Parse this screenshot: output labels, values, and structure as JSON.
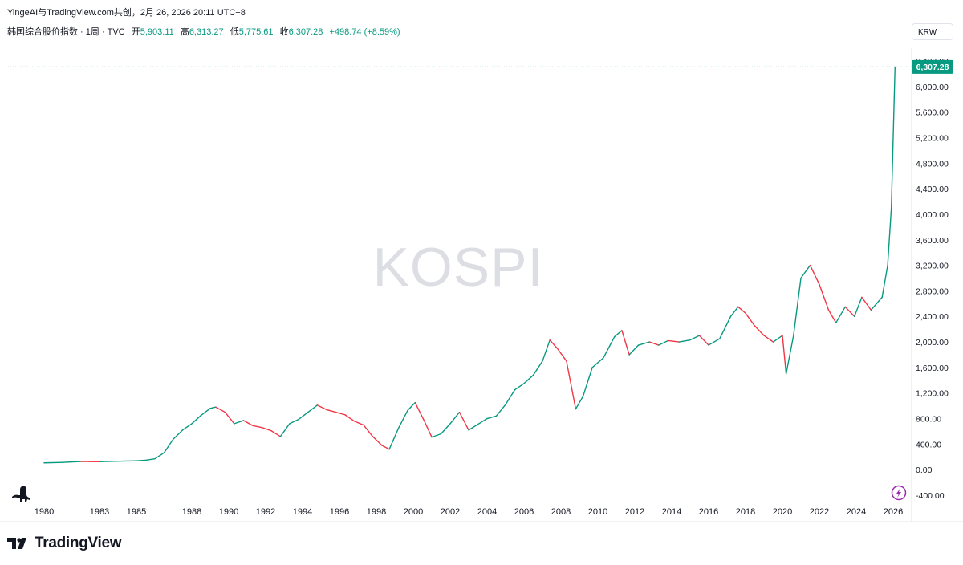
{
  "header": {
    "attribution": "YingeAI与TradingView.com共创，2月 26, 2026 20:11 UTC+8",
    "symbol": "韩国综合股价指数 · 1周 · TVC",
    "open_label": "开",
    "open": "5,903.11",
    "high_label": "高",
    "high": "6,313.27",
    "low_label": "低",
    "low": "5,775.61",
    "close_label": "收",
    "close": "6,307.28",
    "change": "+498.74 (+8.59%)"
  },
  "currency": "KRW",
  "watermark": "KOSPI",
  "brand": "TradingView",
  "price_tag": "6,307.28",
  "colors": {
    "up": "#089981",
    "down": "#f23645",
    "text": "#131722",
    "watermark": "#dcdee3"
  },
  "icons": {
    "logo": "dinosaur-logo-icon",
    "bolt": "lightning-icon",
    "brand_mark": "tradingview-logo-icon"
  },
  "chart_data": {
    "type": "line",
    "title": "KOSPI",
    "xlabel": "",
    "ylabel": "",
    "series": [
      {
        "x": [
          1980,
          1981,
          1982,
          1983,
          1984,
          1985,
          1985.5,
          1986,
          1986.5,
          1987,
          1987.5,
          1988,
          1988.5,
          1989,
          1989.3,
          1989.8,
          1990.3,
          1990.8,
          1991.3,
          1991.8,
          1992.3,
          1992.8,
          1993.3,
          1993.8,
          1994.3,
          1994.8,
          1995.3,
          1995.8,
          1996.3,
          1996.8,
          1997.3,
          1997.8,
          1998.3,
          1998.7,
          1999.2,
          1999.7,
          2000.1,
          2000.6,
          2001,
          2001.5,
          2002,
          2002.5,
          2003,
          2003.5,
          2004,
          2004.5,
          2005,
          2005.5,
          2006,
          2006.5,
          2007,
          2007.4,
          2007.8,
          2008.3,
          2008.8,
          2009.2,
          2009.7,
          2010.3,
          2010.9,
          2011.3,
          2011.7,
          2012.2,
          2012.8,
          2013.3,
          2013.8,
          2014.4,
          2015,
          2015.5,
          2016,
          2016.6,
          2017.2,
          2017.6,
          2018,
          2018.5,
          2019,
          2019.5,
          2020,
          2020.2,
          2020.6,
          2021,
          2021.5,
          2022,
          2022.5,
          2022.9,
          2023.4,
          2023.9,
          2024.3,
          2024.8,
          2025.1,
          2025.4,
          2025.7,
          2025.9,
          2026.1
        ],
        "y": [
          106,
          113,
          128,
          124,
          132,
          138,
          148,
          170,
          265,
          480,
          620,
          720,
          850,
          960,
          980,
          900,
          720,
          770,
          690,
          660,
          610,
          520,
          720,
          790,
          900,
          1010,
          940,
          900,
          860,
          760,
          700,
          520,
          380,
          320,
          650,
          930,
          1050,
          760,
          510,
          560,
          720,
          900,
          620,
          710,
          800,
          840,
          1020,
          1250,
          1350,
          1480,
          1700,
          2030,
          1900,
          1700,
          950,
          1150,
          1600,
          1750,
          2080,
          2180,
          1800,
          1950,
          2000,
          1950,
          2020,
          2000,
          2030,
          2100,
          1950,
          2050,
          2400,
          2550,
          2450,
          2250,
          2100,
          2000,
          2100,
          1500,
          2100,
          3000,
          3200,
          2900,
          2500,
          2300,
          2550,
          2400,
          2700,
          2500,
          2600,
          2700,
          3200,
          4100,
          6307
        ]
      }
    ],
    "ylim": [
      -400,
      6400
    ],
    "yticks": [
      "6,400.00",
      "6,000.00",
      "5,600.00",
      "5,200.00",
      "4,800.00",
      "4,400.00",
      "4,000.00",
      "3,600.00",
      "3,200.00",
      "2,800.00",
      "2,400.00",
      "2,000.00",
      "1,600.00",
      "1,200.00",
      "800.00",
      "400.00",
      "0.00",
      "-400.00"
    ],
    "xticks": [
      "1980",
      "1983",
      "1985",
      "1988",
      "1990",
      "1992",
      "1994",
      "1996",
      "1998",
      "2000",
      "2002",
      "2004",
      "2006",
      "2008",
      "2010",
      "2012",
      "2014",
      "2016",
      "2018",
      "2020",
      "2022",
      "2024",
      "2026"
    ],
    "grid": false,
    "legend": "none"
  }
}
